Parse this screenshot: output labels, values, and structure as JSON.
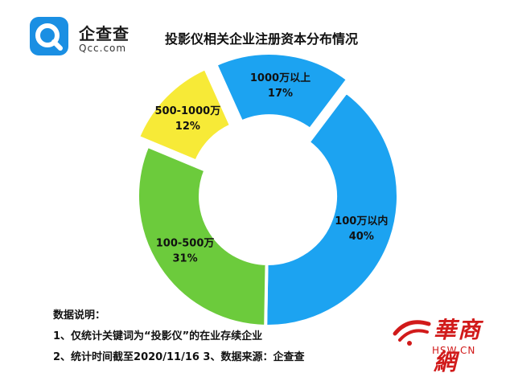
{
  "header": {
    "logo_cn": "企查查",
    "logo_en": "Qcc.com",
    "title": "投影仪相关企业注册资本分布情况"
  },
  "chart_data": {
    "type": "pie",
    "donut": true,
    "categories": [
      "100万以内",
      "100-500万",
      "500-1000万",
      "1000万以上"
    ],
    "values": [
      40,
      31,
      12,
      17
    ],
    "labels": [
      "40%",
      "31%",
      "12%",
      "17%"
    ],
    "colors": [
      "#1ca3f1",
      "#6ccb3c",
      "#f7ea37",
      "#1ca3f1"
    ],
    "start_angle_deg": 37,
    "exploded": [
      "1000万以上",
      "500-1000万"
    ]
  },
  "notes": {
    "heading": "数据说明：",
    "line1": "1、仅统计关键词为“投影仪”的在业存续企业",
    "line2": "2、统计时间截至2020/11/16   3、数据来源：企查查"
  },
  "watermark": {
    "cn": "華商網",
    "url": "HSW.CN",
    "color": "#d11a1a"
  },
  "logo_color": "#1a8fe3"
}
